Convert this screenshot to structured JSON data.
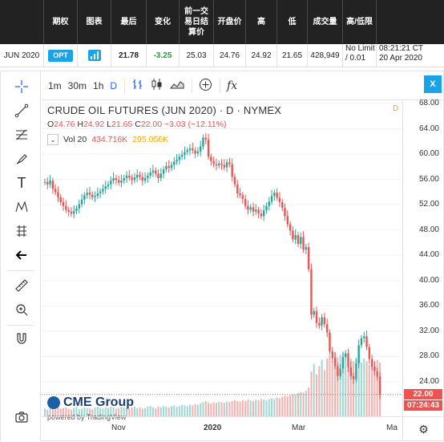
{
  "quote_table": {
    "headers": [
      "期权",
      "图表",
      "最后",
      "变化",
      "前一交易日结算价",
      "开盘价",
      "高",
      "低",
      "成交量",
      "高/低限"
    ],
    "header_prior_line1": "前一交",
    "header_prior_line2": "易日结",
    "header_prior_line3": "算价",
    "row": {
      "month": "JUN 2020",
      "opt_badge": "OPT",
      "last": "21.78",
      "change": "-3.25",
      "prior_settle": "25.03",
      "open": "24.76",
      "high": "24.92",
      "low": "21.65",
      "volume": "428,949",
      "limit_line1": "No Limit",
      "limit_line2": "/ 0.01",
      "updated_line1": "08:21:21 CT",
      "updated_line2": "20 Apr 2020"
    }
  },
  "toolbar": {
    "intervals": [
      "1m",
      "30m",
      "1h",
      "D"
    ],
    "close_label": "X",
    "fx_label": "fx"
  },
  "legend": {
    "title": "CRUDE OIL FUTURES (JUN 2020) · D · NYMEX",
    "o_label": "O",
    "o_value": "24.76",
    "h_label": "H",
    "h_value": "24.92",
    "l_label": "L",
    "l_value": "21.65",
    "c_label": "C",
    "c_value": "22.00",
    "chg_value": "−3.03 (−12.11%)",
    "vol_label": "Vol 20",
    "vol_value1": "434.716K",
    "vol_value2": "295.056K",
    "d_marker": "D"
  },
  "branding": {
    "logo": "CME Group",
    "powered": "powered by TradingView"
  },
  "colors": {
    "up": "#26a69a",
    "down": "#ef5350",
    "accent": "#1aa3e8",
    "header_bg": "#222222"
  },
  "chart_data": {
    "type": "candlestick",
    "y_ticks": [
      "68.00",
      "64.00",
      "60.00",
      "56.00",
      "52.00",
      "48.00",
      "44.00",
      "40.00",
      "36.00",
      "32.00",
      "28.00",
      "24.00"
    ],
    "ylim": [
      20.0,
      69.0
    ],
    "x_ticks": [
      "Nov",
      "2020",
      "Mar",
      "Ma"
    ],
    "last_price": "22.00",
    "countdown": "07:24:43",
    "close_series": [
      55.6,
      55.2,
      55.8,
      54.5,
      54.0,
      53.2,
      52.4,
      51.8,
      51.2,
      50.9,
      50.6,
      51.0,
      51.4,
      52.1,
      52.8,
      53.5,
      53.9,
      53.6,
      53.2,
      53.4,
      53.8,
      54.1,
      54.5,
      54.9,
      55.2,
      55.8,
      56.2,
      55.9,
      55.5,
      55.8,
      56.2,
      56.6,
      56.3,
      55.9,
      56.3,
      56.7,
      56.4,
      55.8,
      56.2,
      56.6,
      57.1,
      57.4,
      56.9,
      56.2,
      56.9,
      57.6,
      58.1,
      57.8,
      58.3,
      58.8,
      59.1,
      59.6,
      59.9,
      60.3,
      60.6,
      60.9,
      60.6,
      60.1,
      60.4,
      61.2,
      62.6,
      62.3,
      59.6,
      58.9,
      58.4,
      58.2,
      58.5,
      58.3,
      57.9,
      58.7,
      58.4,
      56.4,
      55.2,
      53.8,
      53.5,
      52.9,
      51.8,
      51.2,
      51.6,
      50.9,
      51.2,
      50.6,
      50.2,
      51.1,
      51.8,
      52.5,
      53.4,
      53.9,
      53.1,
      52.4,
      51.5,
      50.2,
      48.9,
      47.9,
      46.5,
      47.2,
      45.8,
      46.9,
      44.9,
      45.3,
      41.8,
      34.6,
      35.2,
      33.3,
      32.9,
      34.2,
      33.1,
      31.8,
      28.8,
      27.8,
      26.5,
      24.9,
      26.1,
      27.9,
      28.5,
      26.3,
      24.9,
      24.4,
      26.9,
      29.8,
      30.9,
      31.2,
      29.5,
      27.6,
      26.4,
      25.7,
      24.8,
      22.0
    ],
    "volume_series": [
      12,
      10,
      14,
      13,
      11,
      15,
      12,
      13,
      14,
      12,
      10,
      13,
      15,
      11,
      12,
      14,
      13,
      12,
      11,
      14,
      15,
      13,
      12,
      14,
      13,
      15,
      14,
      12,
      13,
      15,
      14,
      13,
      12,
      14,
      15,
      13,
      14,
      12,
      13,
      15,
      16,
      14,
      13,
      15,
      14,
      16,
      15,
      14,
      16,
      17,
      15,
      16,
      18,
      17,
      16,
      18,
      17,
      19,
      18,
      20,
      22,
      24,
      21,
      20,
      22,
      21,
      23,
      22,
      21,
      23,
      22,
      24,
      25,
      24,
      23,
      25,
      24,
      26,
      25,
      24,
      26,
      25,
      27,
      26,
      25,
      27,
      28,
      27,
      29,
      28,
      30,
      32,
      31,
      33,
      35,
      34,
      36,
      38,
      37,
      40,
      45,
      70,
      82,
      65,
      78,
      88,
      72,
      90,
      95,
      85,
      100,
      92,
      96,
      98,
      88,
      94,
      90,
      86,
      92,
      88,
      84,
      90,
      86,
      80,
      82,
      85,
      88,
      84
    ]
  }
}
